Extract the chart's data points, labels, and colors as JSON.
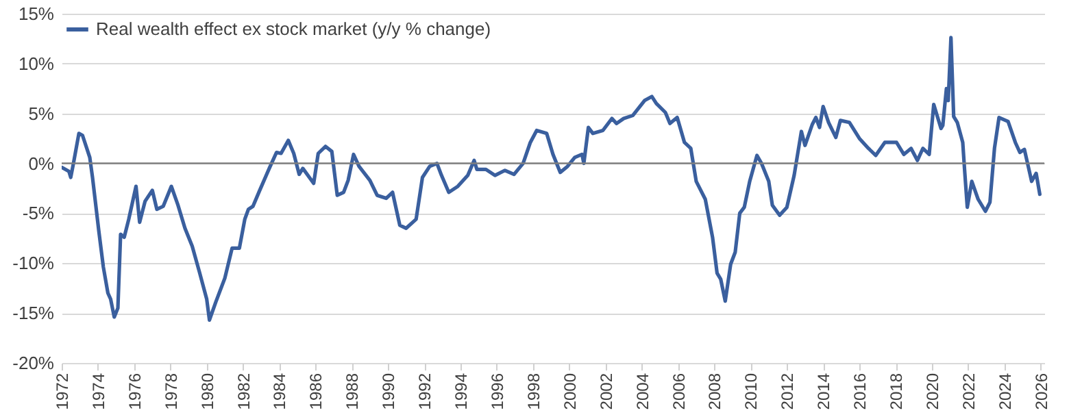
{
  "chart_data": {
    "type": "line",
    "legend": "top left",
    "grid": "y",
    "ylim": [
      -20,
      15
    ],
    "xlim": [
      1972,
      2026.2
    ],
    "yticks": [
      {
        "value": -20,
        "label": "-20%"
      },
      {
        "value": -15,
        "label": "-15%"
      },
      {
        "value": -10,
        "label": "-10%"
      },
      {
        "value": -5,
        "label": "-5%"
      },
      {
        "value": 0,
        "label": "0%"
      },
      {
        "value": 5,
        "label": "5%"
      },
      {
        "value": 10,
        "label": "10%"
      },
      {
        "value": 15,
        "label": "15%"
      }
    ],
    "xticks": [
      1972,
      1974,
      1976,
      1978,
      1980,
      1982,
      1984,
      1986,
      1988,
      1990,
      1992,
      1994,
      1996,
      1998,
      2000,
      2002,
      2004,
      2006,
      2008,
      2010,
      2012,
      2014,
      2016,
      2018,
      2020,
      2022,
      2024,
      2026
    ],
    "ref_lines": [
      {
        "axis": "y",
        "value": 0,
        "color": "#7f7f7f"
      }
    ],
    "series": [
      {
        "name": "Real wealth effect ex stock market (y/y % change)",
        "color": "#3a5f9e",
        "x": [
          1972.0,
          1972.4,
          1972.5,
          1972.65,
          1972.95,
          1973.15,
          1973.55,
          1973.7,
          1974.05,
          1974.3,
          1974.55,
          1974.7,
          1974.9,
          1975.1,
          1975.25,
          1975.45,
          1975.7,
          1976.1,
          1976.3,
          1976.6,
          1977.0,
          1977.25,
          1977.6,
          1978.05,
          1978.4,
          1978.8,
          1979.2,
          1979.6,
          1980.0,
          1980.15,
          1980.5,
          1981.0,
          1981.4,
          1981.8,
          1982.1,
          1982.3,
          1982.55,
          1982.9,
          1983.45,
          1983.85,
          1984.1,
          1984.5,
          1984.8,
          1985.1,
          1985.3,
          1985.9,
          1986.15,
          1986.55,
          1986.9,
          1987.2,
          1987.55,
          1987.8,
          1988.1,
          1988.4,
          1989.0,
          1989.4,
          1989.9,
          1990.25,
          1990.65,
          1991.0,
          1991.55,
          1991.9,
          1992.3,
          1992.7,
          1992.95,
          1993.35,
          1993.85,
          1994.4,
          1994.75,
          1994.9,
          1995.4,
          1995.9,
          1996.45,
          1996.95,
          1997.45,
          1997.85,
          1998.2,
          1998.75,
          1999.1,
          1999.5,
          1999.9,
          2000.3,
          2000.7,
          2000.8,
          2001.05,
          2001.3,
          2001.85,
          2002.35,
          2002.6,
          2003.0,
          2003.5,
          2004.15,
          2004.55,
          2004.8,
          2005.3,
          2005.55,
          2005.95,
          2006.35,
          2006.7,
          2007.0,
          2007.5,
          2007.9,
          2008.15,
          2008.35,
          2008.6,
          2008.9,
          2009.15,
          2009.4,
          2009.65,
          2009.95,
          2010.35,
          2010.6,
          2011.0,
          2011.2,
          2011.6,
          2012.0,
          2012.4,
          2012.8,
          2013.0,
          2013.4,
          2013.6,
          2013.8,
          2014.0,
          2014.3,
          2014.7,
          2014.95,
          2015.45,
          2016.0,
          2016.5,
          2016.9,
          2017.4,
          2018.05,
          2018.45,
          2018.85,
          2019.2,
          2019.5,
          2019.85,
          2020.1,
          2020.5,
          2020.6,
          2020.8,
          2020.9,
          2021.05,
          2021.2,
          2021.4,
          2021.7,
          2021.8,
          2021.95,
          2022.2,
          2022.55,
          2022.95,
          2023.2,
          2023.45,
          2023.7,
          2024.2,
          2024.6,
          2024.85,
          2025.1,
          2025.5,
          2025.75,
          2025.95
        ],
        "values": [
          -0.4,
          -0.8,
          -1.4,
          0.0,
          3.0,
          2.8,
          0.6,
          -1.4,
          -6.8,
          -10.4,
          -13.0,
          -13.6,
          -15.4,
          -14.5,
          -7.1,
          -7.4,
          -5.6,
          -2.3,
          -5.9,
          -3.8,
          -2.7,
          -4.6,
          -4.3,
          -2.3,
          -4.1,
          -6.5,
          -8.3,
          -10.9,
          -13.6,
          -15.7,
          -13.9,
          -11.5,
          -8.5,
          -8.5,
          -5.6,
          -4.6,
          -4.3,
          -2.8,
          -0.5,
          1.1,
          1.0,
          2.3,
          1.0,
          -1.1,
          -0.5,
          -2.0,
          1.0,
          1.7,
          1.2,
          -3.2,
          -2.9,
          -1.7,
          0.9,
          -0.3,
          -1.7,
          -3.2,
          -3.5,
          -2.9,
          -6.2,
          -6.5,
          -5.6,
          -1.4,
          -0.3,
          0.0,
          -1.2,
          -2.9,
          -2.3,
          -1.2,
          0.3,
          -0.6,
          -0.6,
          -1.2,
          -0.7,
          -1.1,
          0.0,
          2.1,
          3.3,
          3.0,
          0.9,
          -0.9,
          -0.3,
          0.6,
          0.9,
          0.0,
          3.6,
          3.0,
          3.3,
          4.5,
          4.0,
          4.5,
          4.8,
          6.3,
          6.7,
          6.0,
          5.1,
          4.0,
          4.6,
          2.1,
          1.5,
          -1.8,
          -3.6,
          -7.4,
          -11.0,
          -11.6,
          -13.8,
          -10.1,
          -8.9,
          -5.0,
          -4.4,
          -1.8,
          0.8,
          0.0,
          -1.8,
          -4.2,
          -5.2,
          -4.4,
          -1.2,
          3.2,
          1.8,
          3.9,
          4.6,
          3.6,
          5.7,
          4.1,
          2.6,
          4.3,
          4.1,
          2.5,
          1.5,
          0.8,
          2.1,
          2.1,
          0.9,
          1.5,
          0.3,
          1.5,
          0.9,
          5.9,
          3.5,
          3.8,
          7.5,
          6.3,
          12.6,
          4.7,
          4.1,
          2.1,
          -0.6,
          -4.4,
          -1.8,
          -3.6,
          -4.8,
          -3.9,
          1.5,
          4.6,
          4.2,
          2.1,
          1.1,
          1.4,
          -1.8,
          -1.0,
          -3.1
        ]
      }
    ]
  }
}
